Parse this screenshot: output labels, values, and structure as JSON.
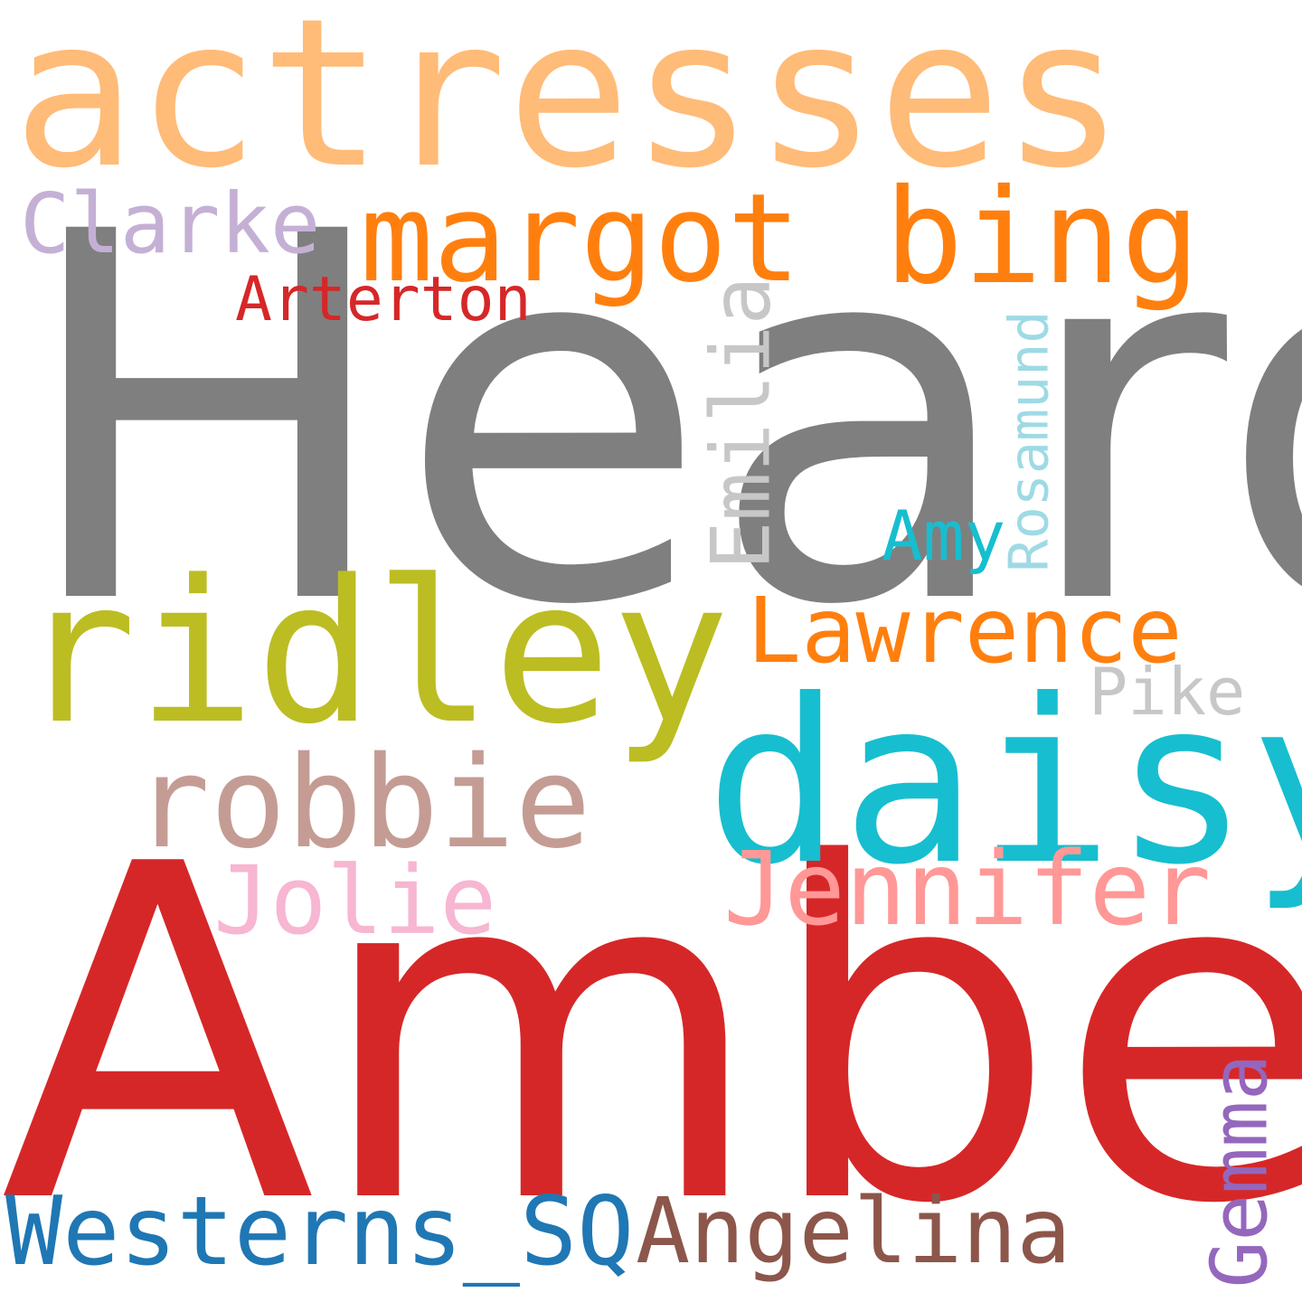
{
  "words": {
    "actresses": {
      "text": "actresses",
      "color": "#ffbb78"
    },
    "heard": {
      "text": "Heard",
      "color": "#7f7f7f"
    },
    "amber": {
      "text": "Amber",
      "color": "#d62728"
    },
    "margot": {
      "text": "margot",
      "color": "#ff7f0e"
    },
    "bing": {
      "text": "bing",
      "color": "#ff7f0e"
    },
    "clarke": {
      "text": "Clarke",
      "color": "#c5b0d5"
    },
    "arterton": {
      "text": "Arterton",
      "color": "#d62728"
    },
    "emilia": {
      "text": "Emilia",
      "color": "#c7c7c7"
    },
    "rosamund": {
      "text": "Rosamund",
      "color": "#9edae5"
    },
    "amy": {
      "text": "Amy",
      "color": "#17becf"
    },
    "ridley": {
      "text": "ridley",
      "color": "#bcbd22"
    },
    "lawrence": {
      "text": "Lawrence",
      "color": "#ff7f0e"
    },
    "pike": {
      "text": "Pike",
      "color": "#c7c7c7"
    },
    "daisy": {
      "text": "daisy",
      "color": "#17becf"
    },
    "robbie": {
      "text": "robbie",
      "color": "#c49c94"
    },
    "jolie": {
      "text": "Jolie",
      "color": "#f7b6d2"
    },
    "jennifer": {
      "text": "Jennifer",
      "color": "#ff9896"
    },
    "westerns_sq": {
      "text": "Westerns_SQ",
      "color": "#1f77b4"
    },
    "angelina": {
      "text": "Angelina",
      "color": "#8c564b"
    },
    "gemma": {
      "text": "Gemma",
      "color": "#9467bd"
    }
  }
}
